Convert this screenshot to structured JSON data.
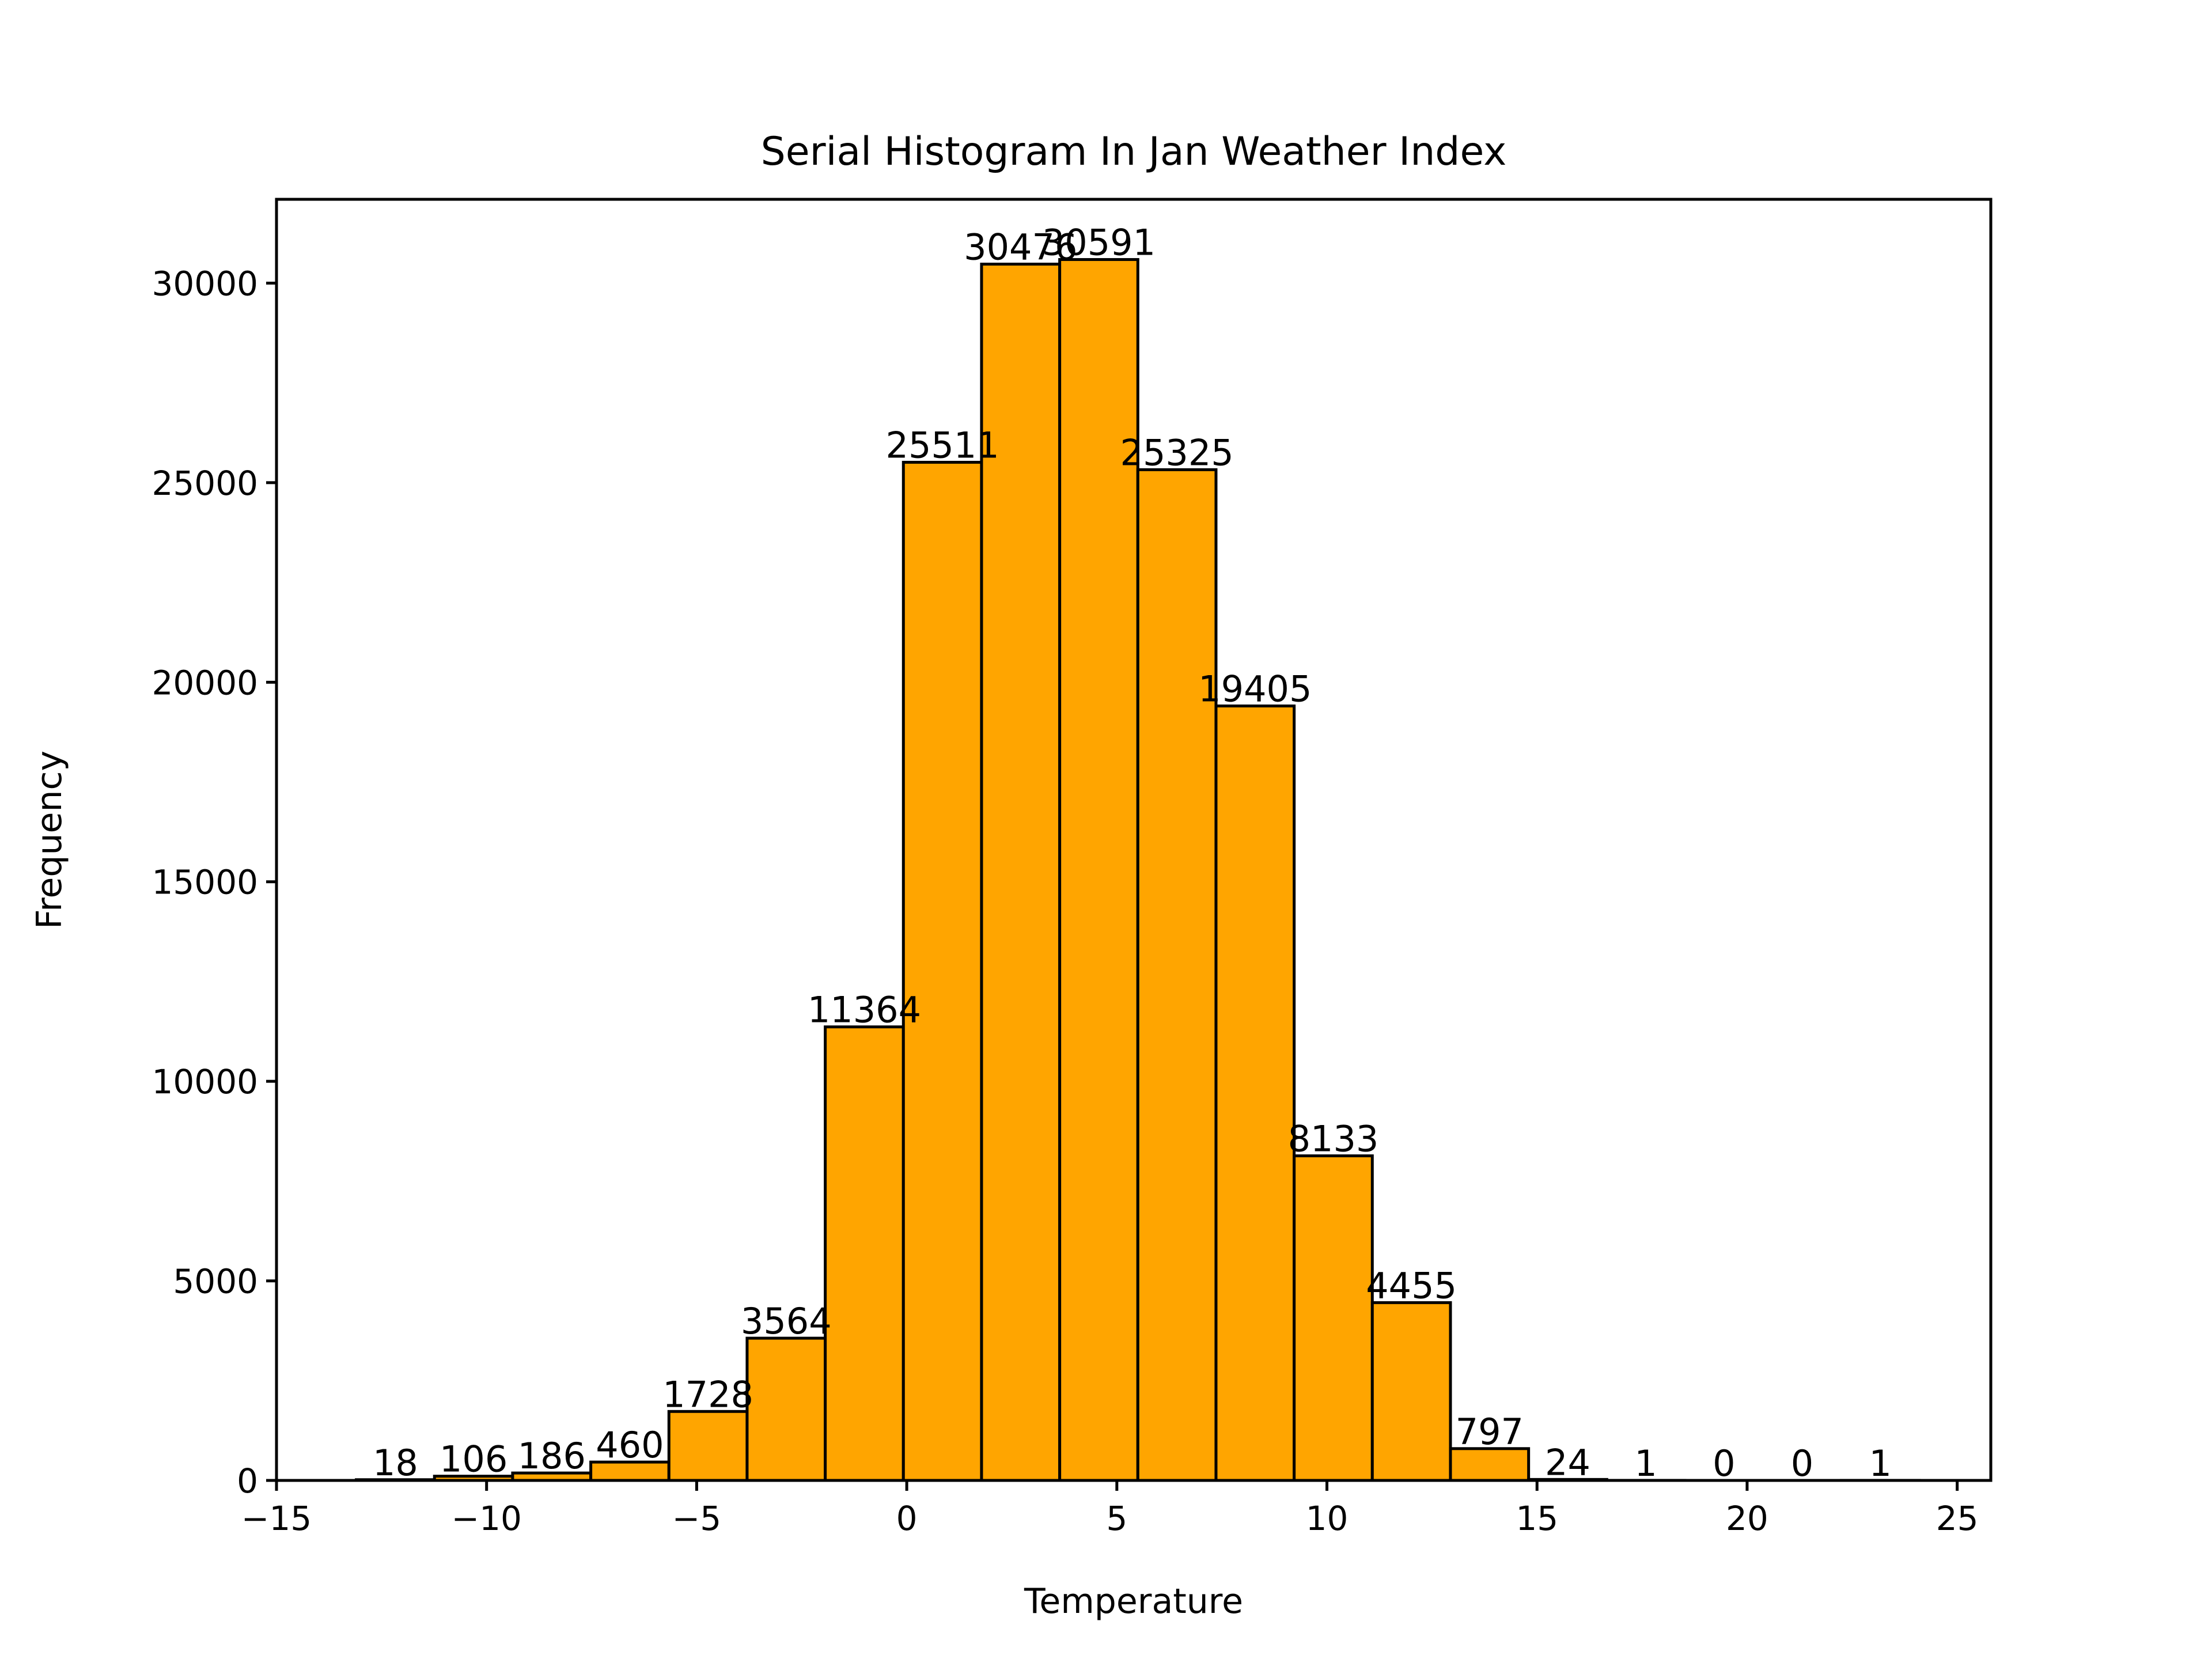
{
  "chart_data": {
    "type": "bar",
    "title": "Serial Histogram In Jan Weather Index",
    "xlabel": "Temperature",
    "ylabel": "Frequency",
    "xlim": [
      -15,
      25.8
    ],
    "ylim": [
      0,
      32100
    ],
    "x_ticks": [
      -15,
      -10,
      -5,
      0,
      5,
      10,
      15,
      20,
      25
    ],
    "x_tick_labels": [
      "−15",
      "−10",
      "−5",
      "0",
      "5",
      "10",
      "15",
      "20",
      "25"
    ],
    "y_ticks": [
      0,
      5000,
      10000,
      15000,
      20000,
      25000,
      30000
    ],
    "y_tick_labels": [
      "0",
      "5000",
      "10000",
      "15000",
      "20000",
      "25000",
      "30000"
    ],
    "bin_edges": [
      -13.1,
      -11.24,
      -9.38,
      -7.52,
      -5.66,
      -3.8,
      -1.94,
      -0.08,
      1.78,
      3.64,
      5.5,
      7.36,
      9.22,
      11.08,
      12.94,
      14.8,
      16.66,
      18.52,
      20.38,
      22.24,
      24.1
    ],
    "values": [
      18,
      106,
      186,
      460,
      1728,
      3564,
      11364,
      25511,
      30476,
      30591,
      25325,
      19405,
      8133,
      4455,
      797,
      24,
      1,
      0,
      0,
      1
    ],
    "data_labels": [
      "18",
      "106",
      "186",
      "460",
      "1728",
      "3564",
      "11364",
      "25511",
      "30476",
      "30591",
      "25325",
      "19405",
      "8133",
      "4455",
      "797",
      "24",
      "1",
      "0",
      "0",
      "1"
    ],
    "bar_color": "#ffa500",
    "edge_color": "#000000",
    "grid": false,
    "legend": "none"
  }
}
